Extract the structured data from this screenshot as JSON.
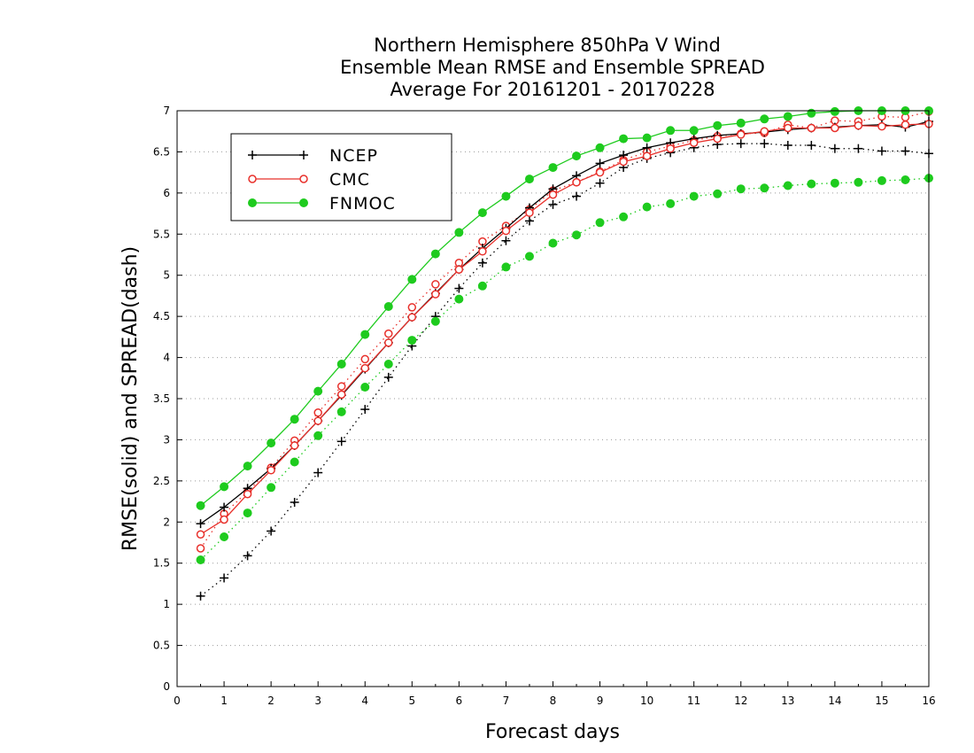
{
  "chart_data": {
    "type": "line",
    "title_lines": [
      "Northern Hemisphere 850hPa V Wind",
      "Ensemble Mean RMSE and Ensemble SPREAD",
      "Average For 20161201 - 20170228"
    ],
    "xlabel": "Forecast days",
    "ylabel": "RMSE(solid) and SPREAD(dash)",
    "xlim": [
      0,
      16
    ],
    "ylim": [
      0,
      7
    ],
    "x_ticks": [
      "0",
      "1",
      "2",
      "3",
      "4",
      "5",
      "6",
      "7",
      "8",
      "9",
      "10",
      "11",
      "12",
      "13",
      "14",
      "15",
      "16"
    ],
    "y_ticks": [
      "0",
      "0.5",
      "1",
      "1.5",
      "2",
      "2.5",
      "3",
      "3.5",
      "4",
      "4.5",
      "5",
      "5.5",
      "6",
      "6.5",
      "7"
    ],
    "grid": "horizontal dotted",
    "legend_position": "top-left",
    "x": [
      0.5,
      1,
      1.5,
      2,
      2.5,
      3,
      3.5,
      4,
      4.5,
      5,
      5.5,
      6,
      6.5,
      7,
      7.5,
      8,
      8.5,
      9,
      9.5,
      10,
      10.5,
      11,
      11.5,
      12,
      12.5,
      13,
      13.5,
      14,
      14.5,
      15,
      15.5,
      16
    ],
    "series": [
      {
        "name": "NCEP",
        "color": "#000000",
        "marker": "plus",
        "rmse": [
          1.98,
          2.18,
          2.41,
          2.65,
          2.93,
          3.23,
          3.54,
          3.86,
          4.18,
          4.49,
          4.78,
          5.07,
          5.33,
          5.57,
          5.82,
          6.05,
          6.21,
          6.36,
          6.46,
          6.55,
          6.61,
          6.66,
          6.7,
          6.72,
          6.74,
          6.77,
          6.79,
          6.8,
          6.82,
          6.83,
          6.8,
          6.87
        ],
        "spread": [
          1.1,
          1.32,
          1.59,
          1.89,
          2.24,
          2.6,
          2.98,
          3.37,
          3.76,
          4.14,
          4.5,
          4.84,
          5.15,
          5.42,
          5.66,
          5.86,
          5.96,
          6.12,
          6.31,
          6.42,
          6.49,
          6.55,
          6.59,
          6.6,
          6.6,
          6.58,
          6.58,
          6.54,
          6.54,
          6.51,
          6.51,
          6.48
        ]
      },
      {
        "name": "CMC",
        "color": "#e8302b",
        "marker": "circle-open",
        "rmse": [
          1.85,
          2.03,
          2.34,
          2.63,
          2.93,
          3.23,
          3.55,
          3.87,
          4.18,
          4.49,
          4.77,
          5.07,
          5.29,
          5.54,
          5.76,
          5.98,
          6.13,
          6.25,
          6.38,
          6.45,
          6.54,
          6.61,
          6.66,
          6.71,
          6.75,
          6.79,
          6.79,
          6.79,
          6.82,
          6.81,
          6.83,
          6.84
        ],
        "spread": [
          1.68,
          2.1,
          2.37,
          2.66,
          2.99,
          3.33,
          3.65,
          3.98,
          4.29,
          4.61,
          4.89,
          5.15,
          5.41,
          5.6,
          5.8,
          6.03,
          6.13,
          6.26,
          6.4,
          6.5,
          6.57,
          6.64,
          6.69,
          6.72,
          6.73,
          6.83,
          6.79,
          6.88,
          6.87,
          6.93,
          6.92,
          6.99
        ]
      },
      {
        "name": "FNMOC",
        "color": "#1ecb1e",
        "marker": "circle-filled",
        "rmse": [
          2.2,
          2.43,
          2.68,
          2.96,
          3.25,
          3.59,
          3.92,
          4.28,
          4.62,
          4.95,
          5.26,
          5.52,
          5.76,
          5.96,
          6.17,
          6.31,
          6.45,
          6.55,
          6.66,
          6.67,
          6.76,
          6.76,
          6.82,
          6.85,
          6.9,
          6.93,
          6.97,
          6.99,
          7.0,
          7.0,
          7.0,
          7.0
        ],
        "spread": [
          1.54,
          1.82,
          2.11,
          2.42,
          2.73,
          3.05,
          3.34,
          3.64,
          3.92,
          4.21,
          4.44,
          4.71,
          4.87,
          5.1,
          5.23,
          5.39,
          5.49,
          5.64,
          5.71,
          5.83,
          5.87,
          5.96,
          5.99,
          6.05,
          6.06,
          6.09,
          6.11,
          6.12,
          6.13,
          6.15,
          6.16,
          6.18
        ]
      }
    ]
  }
}
